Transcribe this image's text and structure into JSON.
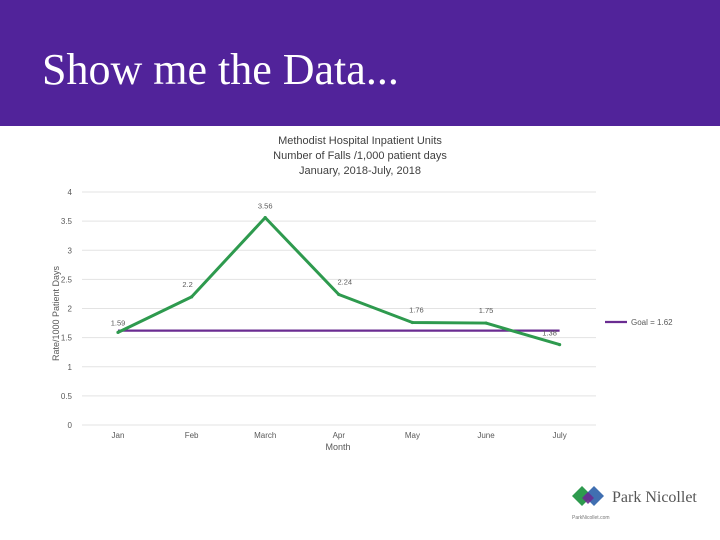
{
  "slide": {
    "title": "Show me the Data..."
  },
  "logo": {
    "name": "Park Nicollet",
    "url": "ParkNicollet.com"
  },
  "colors": {
    "banner": "#51239a",
    "series_line": "#2e9a4e",
    "goal_line": "#6a2c91",
    "grid": "#e3e3e3"
  },
  "chart_data": {
    "type": "line",
    "title_lines": [
      "Methodist Hospital Inpatient Units",
      "Number of Falls /1,000 patient days",
      "January, 2018-July, 2018"
    ],
    "xlabel": "Month",
    "ylabel": "Rate/1000 Patient Days",
    "categories": [
      "Jan",
      "Feb",
      "March",
      "Apr",
      "May",
      "June",
      "July"
    ],
    "series": [
      {
        "values": [
          1.59,
          2.2,
          3.56,
          2.24,
          1.76,
          1.75,
          1.38
        ],
        "labels": [
          "1.59",
          "2.2",
          "3.56",
          "2.24",
          "1.76",
          "1.75",
          "1.38"
        ]
      }
    ],
    "goal": {
      "name": "Goal = 1.62",
      "value": 1.62
    },
    "ylim": [
      0,
      4
    ],
    "yticks": [
      "0",
      "0.5",
      "1",
      "1.5",
      "2",
      "2.5",
      "3",
      "3.5",
      "4"
    ],
    "grid": true,
    "legend_position": "right"
  }
}
